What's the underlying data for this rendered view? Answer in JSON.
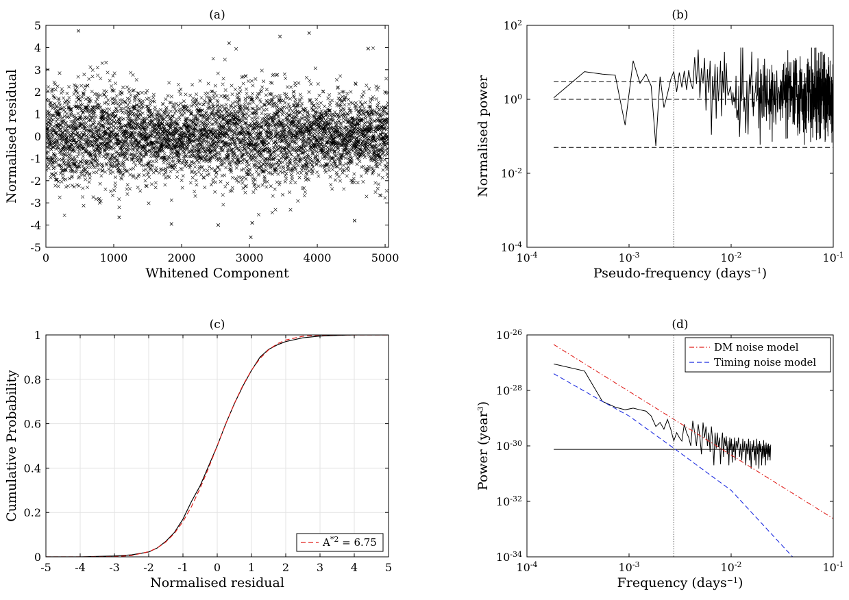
{
  "chart_data": [
    {
      "panel": "(a)",
      "type": "scatter",
      "title": "(a)",
      "xlabel": "Whitened Component",
      "ylabel": "Normalised residual",
      "xlim": [
        0,
        5050
      ],
      "ylim": [
        -5,
        5
      ],
      "xticks": [
        0,
        1000,
        2000,
        3000,
        4000,
        5000
      ],
      "yticks": [
        -5,
        -4,
        -3,
        -2,
        -1,
        0,
        1,
        2,
        3,
        4,
        5
      ],
      "grid": false,
      "marker": "x",
      "n_points": 5050,
      "distribution": "approximately standard normal, mean 0, std 1",
      "notable_points": [
        {
          "x": 480,
          "y": 4.75
        },
        {
          "x": 2700,
          "y": 4.2
        },
        {
          "x": 3450,
          "y": 4.5
        },
        {
          "x": 3880,
          "y": 4.65
        },
        {
          "x": 4750,
          "y": 3.95
        },
        {
          "x": 3020,
          "y": -4.55
        },
        {
          "x": 2540,
          "y": -4.0
        },
        {
          "x": 1850,
          "y": -3.95
        },
        {
          "x": 1080,
          "y": -3.65
        },
        {
          "x": 4550,
          "y": -3.8
        },
        {
          "x": 3040,
          "y": -3.9
        }
      ]
    },
    {
      "panel": "(b)",
      "type": "line",
      "title": "(b)",
      "xlabel": "Pseudo-frequency (days",
      "xlabel_sup": "−1",
      "xlabel_tail": ")",
      "ylabel": "Normalised power",
      "xscale": "log",
      "yscale": "log",
      "xlim": [
        0.0001,
        0.1
      ],
      "ylim": [
        0.0001,
        100
      ],
      "xticks": [
        {
          "base": "10",
          "exp": "-4"
        },
        {
          "base": "10",
          "exp": "-3"
        },
        {
          "base": "10",
          "exp": "-2"
        },
        {
          "base": "10",
          "exp": "-1"
        }
      ],
      "yticks": [
        {
          "base": "10",
          "exp": "-4"
        },
        {
          "base": "10",
          "exp": "-2"
        },
        {
          "base": "10",
          "exp": "0"
        },
        {
          "base": "10",
          "exp": "2"
        }
      ],
      "grid": false,
      "series": [
        {
          "line": "solid",
          "x": [
            0.000183,
            0.000366,
            0.000549,
            0.000732,
            0.000915,
            0.001098,
            0.001281,
            0.001464,
            0.001647,
            0.00183,
            0.002013,
            0.002196,
            0.002379,
            0.002562,
            0.002745,
            0.002928,
            0.003111,
            0.003294,
            0.003477,
            0.00366,
            0.003843,
            0.004026,
            0.004209,
            0.004392,
            0.004575,
            0.004758,
            0.004941,
            0.005124,
            0.005307,
            0.00549,
            0.005673,
            0.005856,
            0.006039,
            0.006222,
            0.006405,
            0.006588,
            0.006771,
            0.006954,
            0.007137,
            0.00732,
            0.007503,
            0.007686,
            0.007869,
            0.008052,
            0.008235,
            0.008418,
            0.008601,
            0.008784,
            0.008967,
            0.00915
          ],
          "y": [
            1.1,
            5.6,
            4.8,
            4.5,
            0.2,
            11.0,
            2.7,
            4.8,
            2.3,
            0.055,
            4.1,
            0.6,
            1.4,
            3.5,
            5.6,
            1.6,
            5.3,
            2.1,
            5.9,
            1.8,
            6.2,
            2.8,
            1.9,
            13.8,
            2.6,
            22.0,
            1.1,
            7.0,
            2.7,
            13.0,
            0.5,
            6.5,
            1.5,
            11.0,
            0.11,
            4.2,
            1.0,
            9.0,
            0.3,
            7.5,
            0.9,
            2.8,
            11.0,
            0.35,
            5.8,
            1.5,
            19.0,
            0.7,
            9.5,
            2.0
          ],
          "continuation": "dense noisy spectrum from 0.009 to 0.1 days^-1 fluctuating between about 0.01 and 25"
        },
        {
          "line": "dashed",
          "name": "",
          "y_const": 3.0,
          "x_range": [
            0.000183,
            0.1
          ]
        },
        {
          "line": "dashed",
          "name": "",
          "y_const": 1.0,
          "x_range": [
            0.000183,
            0.1
          ]
        },
        {
          "line": "dashed",
          "name": "",
          "y_const": 0.05,
          "x_range": [
            0.000183,
            0.1
          ]
        }
      ],
      "vline": {
        "x": 0.00274,
        "style": "dotted"
      }
    },
    {
      "panel": "(c)",
      "type": "line",
      "title": "(c)",
      "xlabel": "Normalised residual",
      "ylabel": "Cumulative Probability",
      "xlim": [
        -5,
        5
      ],
      "ylim": [
        0,
        1
      ],
      "xticks": [
        -5,
        -4,
        -3,
        -2,
        -1,
        0,
        1,
        2,
        3,
        4,
        5
      ],
      "yticks": [
        0,
        0.2,
        0.4,
        0.6,
        0.8,
        1
      ],
      "grid": true,
      "legend": {
        "placement": "bottom-right",
        "entries": [
          {
            "label": "A",
            "label_sup": "*2",
            "label_tail": " = 6.75",
            "style": "dashed",
            "color": "#e0201c"
          }
        ]
      },
      "series": [
        {
          "name": "",
          "line": "solid",
          "color": "#000000",
          "x": [
            -5,
            -4,
            -3,
            -2.5,
            -2,
            -1.75,
            -1.5,
            -1.25,
            -1,
            -0.75,
            -0.5,
            -0.25,
            0,
            0.25,
            0.5,
            0.75,
            1,
            1.25,
            1.5,
            1.75,
            2,
            2.5,
            3,
            3.5,
            4,
            5
          ],
          "y": [
            0,
            0.0,
            0.004,
            0.009,
            0.022,
            0.04,
            0.07,
            0.11,
            0.17,
            0.25,
            0.32,
            0.41,
            0.5,
            0.6,
            0.69,
            0.77,
            0.84,
            0.9,
            0.935,
            0.955,
            0.97,
            0.987,
            0.995,
            0.998,
            1.0,
            1.0
          ]
        },
        {
          "name": "A*2 = 6.75",
          "line": "dashed",
          "color": "#e0201c",
          "x": [
            -5,
            -4,
            -3,
            -2.5,
            -2,
            -1.75,
            -1.5,
            -1.25,
            -1,
            -0.75,
            -0.5,
            -0.25,
            0,
            0.25,
            0.5,
            0.75,
            1,
            1.25,
            1.5,
            1.75,
            2,
            2.5,
            3,
            3.5,
            4,
            5
          ],
          "y": [
            0.0,
            0.0,
            0.001,
            0.006,
            0.023,
            0.04,
            0.067,
            0.106,
            0.159,
            0.227,
            0.309,
            0.401,
            0.5,
            0.599,
            0.691,
            0.773,
            0.841,
            0.894,
            0.933,
            0.96,
            0.977,
            0.994,
            0.999,
            1.0,
            1.0,
            1.0
          ]
        }
      ]
    },
    {
      "panel": "(d)",
      "type": "line",
      "title": "(d)",
      "xlabel": "Frequency (days",
      "xlabel_sup": "−1",
      "xlabel_tail": ")",
      "ylabel": "Power (year",
      "ylabel_sup": "3",
      "ylabel_tail": ")",
      "xscale": "log",
      "yscale": "log",
      "xlim": [
        0.0001,
        0.1
      ],
      "ylim": [
        1e-34,
        1e-26
      ],
      "xticks": [
        {
          "base": "10",
          "exp": "-4"
        },
        {
          "base": "10",
          "exp": "-3"
        },
        {
          "base": "10",
          "exp": "-2"
        },
        {
          "base": "10",
          "exp": "-1"
        }
      ],
      "yticks": [
        {
          "base": "10",
          "exp": "-34"
        },
        {
          "base": "10",
          "exp": "-32"
        },
        {
          "base": "10",
          "exp": "-30"
        },
        {
          "base": "10",
          "exp": "-28"
        },
        {
          "base": "10",
          "exp": "-26"
        }
      ],
      "grid": false,
      "legend": {
        "placement": "top-right",
        "entries": [
          {
            "label": "DM noise model",
            "style": "dash-dot",
            "color": "#e0201c"
          },
          {
            "label": "Timing noise model",
            "style": "dashed",
            "color": "#1f2ee0"
          }
        ]
      },
      "series": [
        {
          "name": "",
          "line": "solid",
          "color": "#000000",
          "x": [
            0.000183,
            0.000366,
            0.000549,
            0.000732,
            0.000915,
            0.001098,
            0.001281,
            0.001464,
            0.001647,
            0.00183,
            0.002013,
            0.002196,
            0.002379,
            0.002562,
            0.002745,
            0.002928,
            0.003111,
            0.003294,
            0.003477,
            0.00366,
            0.003843,
            0.004026,
            0.004209,
            0.004392,
            0.004575,
            0.004758,
            0.004941,
            0.005124,
            0.005307,
            0.00549,
            0.005673,
            0.005856,
            0.006039,
            0.006222,
            0.006405,
            0.006588,
            0.006771,
            0.006954,
            0.007137,
            0.00732,
            0.007503,
            0.007686,
            0.007869,
            0.008052,
            0.008235,
            0.008418,
            0.008601,
            0.008784,
            0.008967,
            0.00915,
            0.00933,
            0.00951,
            0.0097,
            0.00988,
            0.01006,
            0.01025,
            0.01043,
            0.01061,
            0.0108,
            0.01098,
            0.0112,
            0.0115,
            0.0118,
            0.0121,
            0.0124,
            0.0127,
            0.013,
            0.0133,
            0.0136,
            0.0139,
            0.0142,
            0.0145,
            0.0148,
            0.0151,
            0.0154,
            0.0157,
            0.016,
            0.0163,
            0.0166,
            0.0169,
            0.0172,
            0.0175,
            0.0178,
            0.0181,
            0.0184,
            0.0187,
            0.019,
            0.0193,
            0.0196,
            0.0199,
            0.0202,
            0.0205,
            0.0208,
            0.0211,
            0.0214,
            0.0217,
            0.022,
            0.0223,
            0.0226,
            0.0229,
            0.0232,
            0.0235,
            0.0238,
            0.0241,
            0.0244
          ],
          "y": [
            9e-28,
            5e-28,
            4e-29,
            2.5e-29,
            2e-29,
            2.3e-29,
            2e-29,
            1.8e-29,
            1.2e-29,
            5e-30,
            7e-30,
            4e-30,
            9e-30,
            4e-30,
            1.5e-30,
            3e-30,
            2e-30,
            1.5e-30,
            6e-30,
            3e-30,
            2e-30,
            1e-30,
            8e-30,
            3e-30,
            1e-30,
            6e-30,
            2e-30,
            5e-31,
            7e-30,
            2e-30,
            5e-30,
            1e-30,
            3e-30,
            6e-31,
            5e-30,
            1.5e-30,
            2e-31,
            3e-30,
            8e-31,
            3e-30,
            9e-31,
            2e-30,
            2.2e-31,
            1.5e-30,
            3e-30,
            4e-31,
            2e-30,
            1e-30,
            2.2e-30,
            5e-31,
            1.5e-30,
            2e-31,
            2e-30,
            7e-31,
            1.8e-30,
            2.5e-31,
            1.2e-30,
            6e-31,
            2e-30,
            3e-31,
            1.5e-30,
            8e-31,
            2e-30,
            4e-31,
            1.2e-30,
            3e-31,
            1.8e-30,
            6e-31,
            1.5e-30,
            2e-31,
            1.2e-30,
            5e-31,
            1.8e-30,
            3e-31,
            1.5e-30,
            1.5e-31,
            1.2e-30,
            6e-31,
            1.6e-30,
            3e-31,
            1e-30,
            2e-31,
            1.8e-30,
            5e-31,
            1.2e-30,
            1.5e-31,
            1.5e-30,
            6e-31,
            1.2e-30,
            2e-31,
            1e-30,
            3.5e-31,
            1.6e-30,
            4e-31,
            1.1e-30,
            2e-31,
            1.3e-30,
            5e-31,
            1.1e-30,
            3e-31,
            1.2e-30,
            4e-31,
            1e-30,
            3e-31,
            1.1e-30
          ]
        },
        {
          "name": "",
          "line": "solid",
          "color": "#000000",
          "y_const": 7.5e-31,
          "x_range": [
            0.000183,
            0.0244
          ]
        },
        {
          "name": "DM noise model",
          "line": "dash-dot",
          "color": "#e0201c",
          "x": [
            0.000183,
            0.1
          ],
          "y": [
            4.5e-27,
            2.4e-33
          ]
        },
        {
          "name": "Timing noise model",
          "line": "dashed",
          "color": "#1f2ee0",
          "x": [
            0.000183,
            0.000549,
            0.001,
            0.003,
            0.01,
            0.04
          ],
          "y": [
            4e-28,
            4e-29,
            1.2e-29,
            6.5e-31,
            2.5e-32,
            1e-34
          ]
        }
      ],
      "vline": {
        "x": 0.00274,
        "style": "dotted"
      }
    }
  ]
}
